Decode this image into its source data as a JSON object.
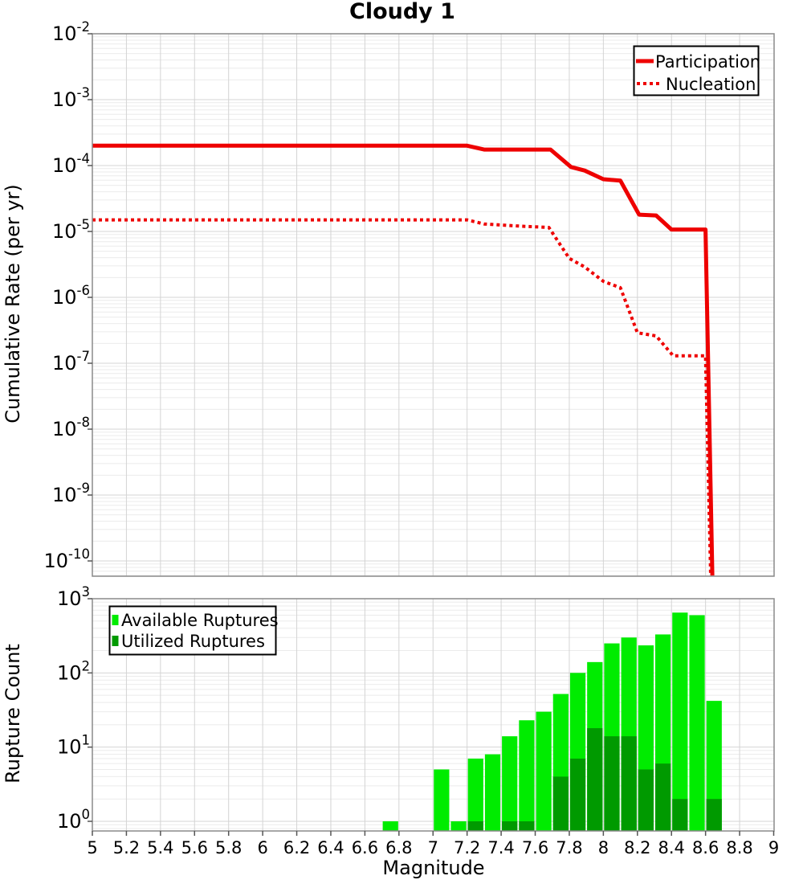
{
  "page": {
    "background": "#ffffff",
    "accent_red": "#ee0000",
    "accent_green_light": "#00ec00",
    "accent_green_dark": "#009a00"
  },
  "chart_data": [
    {
      "type": "line",
      "title": "Cloudy 1",
      "ylabel": "Cumulative Rate (per yr)",
      "xlabel": "",
      "y_scale": "log",
      "ylim": [
        6e-11,
        0.01
      ],
      "y_tick_exponents": [
        -2,
        -3,
        -4,
        -5,
        -6,
        -7,
        -8,
        -9,
        -10
      ],
      "xlim": [
        5,
        9
      ],
      "x_tick_labels": [
        "5",
        "5.2",
        "5.4",
        "5.6",
        "5.8",
        "6",
        "6.2",
        "6.4",
        "6.6",
        "6.8",
        "7",
        "7.2",
        "7.4",
        "7.6",
        "7.8",
        "8",
        "8.2",
        "8.4",
        "8.6",
        "8.8",
        "9"
      ],
      "grid": true,
      "legend_position": "top-right",
      "series": [
        {
          "name": "Participation",
          "style": "solid",
          "color": "#ee0000",
          "line_width": 5,
          "points": [
            [
              5.0,
              0.0002
            ],
            [
              7.2,
              0.0002
            ],
            [
              7.3,
              0.000175
            ],
            [
              7.69,
              0.000175
            ],
            [
              7.81,
              9.5e-05
            ],
            [
              7.89,
              8.4e-05
            ],
            [
              8.0,
              6.2e-05
            ],
            [
              8.1,
              5.9e-05
            ],
            [
              8.21,
              1.8e-05
            ],
            [
              8.31,
              1.75e-05
            ],
            [
              8.4,
              1.07e-05
            ],
            [
              8.6,
              1.07e-05
            ],
            [
              8.64,
              6e-11
            ]
          ]
        },
        {
          "name": "Nucleation",
          "style": "dotted",
          "color": "#ee0000",
          "line_width": 4,
          "points": [
            [
              5.0,
              1.5e-05
            ],
            [
              7.2,
              1.5e-05
            ],
            [
              7.3,
              1.3e-05
            ],
            [
              7.52,
              1.2e-05
            ],
            [
              7.68,
              1.15e-05
            ],
            [
              7.8,
              3.9e-06
            ],
            [
              7.89,
              2.9e-06
            ],
            [
              7.95,
              2.2e-06
            ],
            [
              8.0,
              1.75e-06
            ],
            [
              8.1,
              1.4e-06
            ],
            [
              8.2,
              2.9e-07
            ],
            [
              8.31,
              2.6e-07
            ],
            [
              8.41,
              1.3e-07
            ],
            [
              8.6,
              1.3e-07
            ],
            [
              8.63,
              6e-11
            ]
          ]
        }
      ]
    },
    {
      "type": "bar",
      "title": "",
      "ylabel": "Rupture Count",
      "xlabel": "Magnitude",
      "y_scale": "log",
      "ylim": [
        0.74,
        1000
      ],
      "y_tick_exponents": [
        3,
        2,
        1,
        0
      ],
      "xlim": [
        5,
        9
      ],
      "x_tick_labels": [
        "5",
        "5.2",
        "5.4",
        "5.6",
        "5.8",
        "6",
        "6.2",
        "6.4",
        "6.6",
        "6.8",
        "7",
        "7.2",
        "7.4",
        "7.6",
        "7.8",
        "8",
        "8.2",
        "8.4",
        "8.6",
        "8.8",
        "9"
      ],
      "grid": true,
      "bin_width": 0.1,
      "categories": [
        6.75,
        7.05,
        7.15,
        7.25,
        7.35,
        7.45,
        7.55,
        7.65,
        7.75,
        7.85,
        7.95,
        8.05,
        8.15,
        8.25,
        8.35,
        8.45,
        8.55,
        8.65
      ],
      "legend_position": "top-left",
      "series": [
        {
          "name": "Available Ruptures",
          "color": "#00ec00",
          "values": [
            1,
            5,
            1,
            7,
            8,
            14,
            23,
            30,
            52,
            100,
            140,
            250,
            300,
            235,
            330,
            650,
            600,
            42
          ]
        },
        {
          "name": "Utilized Ruptures",
          "color": "#009a00",
          "values": [
            0,
            0,
            0,
            1,
            0,
            1,
            1,
            0,
            4,
            7,
            18,
            14,
            14,
            5,
            6,
            2,
            0,
            2
          ]
        }
      ]
    }
  ]
}
